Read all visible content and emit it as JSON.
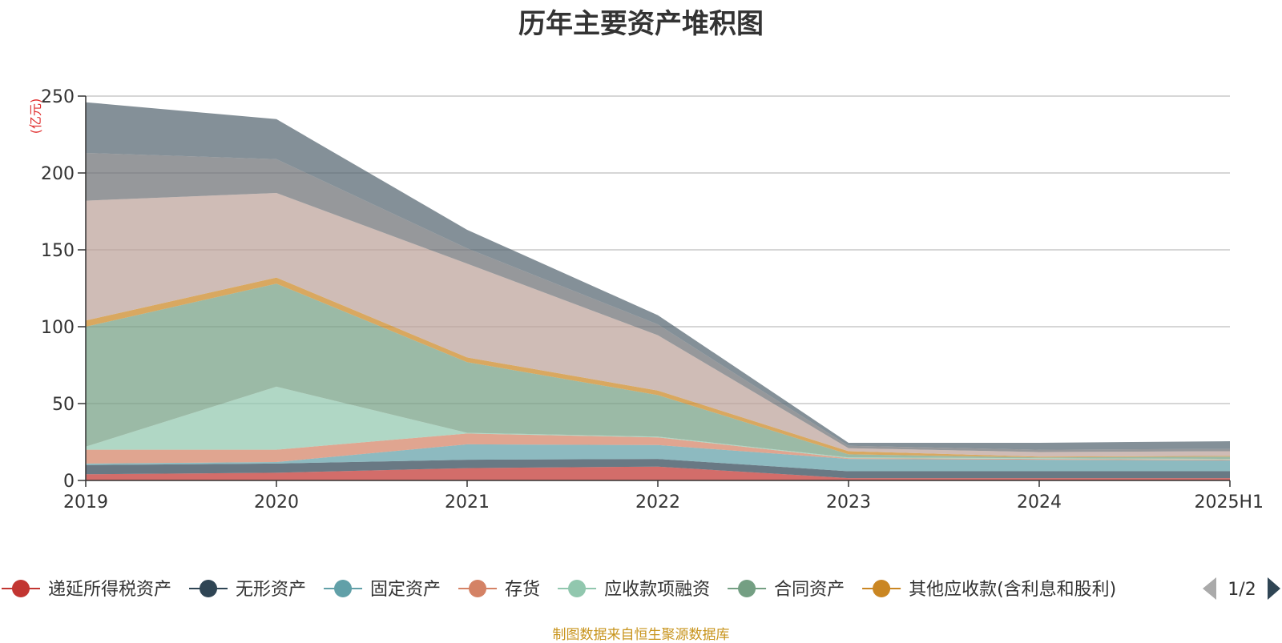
{
  "chart_data": {
    "type": "area",
    "stacked": true,
    "title": "历年主要资产堆积图",
    "ylabel": "(亿元)",
    "xlabel": "",
    "categories": [
      "2019",
      "2020",
      "2021",
      "2022",
      "2023",
      "2024",
      "2025H1"
    ],
    "ylim": [
      0,
      250
    ],
    "yticks": [
      0,
      50,
      100,
      150,
      200,
      250
    ],
    "grid": true,
    "legend_position": "bottom",
    "legend_page": "1/2",
    "series": [
      {
        "name": "递延所得税资产",
        "color": "#c23531",
        "values": [
          4,
          5,
          8,
          9,
          1.5,
          1.5,
          1.5
        ]
      },
      {
        "name": "无形资产",
        "color": "#2f4554",
        "values": [
          6,
          6,
          5.5,
          5,
          4.5,
          4.5,
          4.5
        ]
      },
      {
        "name": "固定资产",
        "color": "#61a0a8",
        "values": [
          1,
          1,
          10,
          9,
          8,
          7.5,
          7
        ]
      },
      {
        "name": "存货",
        "color": "#d48265",
        "values": [
          9,
          8,
          7,
          5,
          0.5,
          0.5,
          0.5
        ]
      },
      {
        "name": "应收款项融资",
        "color": "#91c7ae",
        "values": [
          2,
          41,
          0.5,
          0.5,
          0.5,
          0.5,
          0.5
        ]
      },
      {
        "name": "合同资产",
        "color": "#749f83",
        "values": [
          78,
          67,
          46,
          27,
          2,
          0.5,
          1.5
        ]
      },
      {
        "name": "其他应收款(含利息和股利)",
        "color": "#ca8622",
        "values": [
          4,
          4,
          3,
          3,
          2,
          0.5,
          0.5
        ]
      },
      {
        "name": "",
        "color": "#bda29a",
        "values": [
          78,
          55,
          61,
          36,
          2,
          3,
          3
        ]
      },
      {
        "name": "",
        "color": "#6e7074",
        "values": [
          31,
          22,
          10,
          7,
          1.5,
          1.5,
          1.5
        ]
      },
      {
        "name": "",
        "color": "#546570",
        "values": [
          33,
          26,
          12,
          6,
          2,
          4.5,
          5
        ]
      }
    ]
  },
  "footer": {
    "source": "制图数据来自恒生聚源数据库"
  }
}
